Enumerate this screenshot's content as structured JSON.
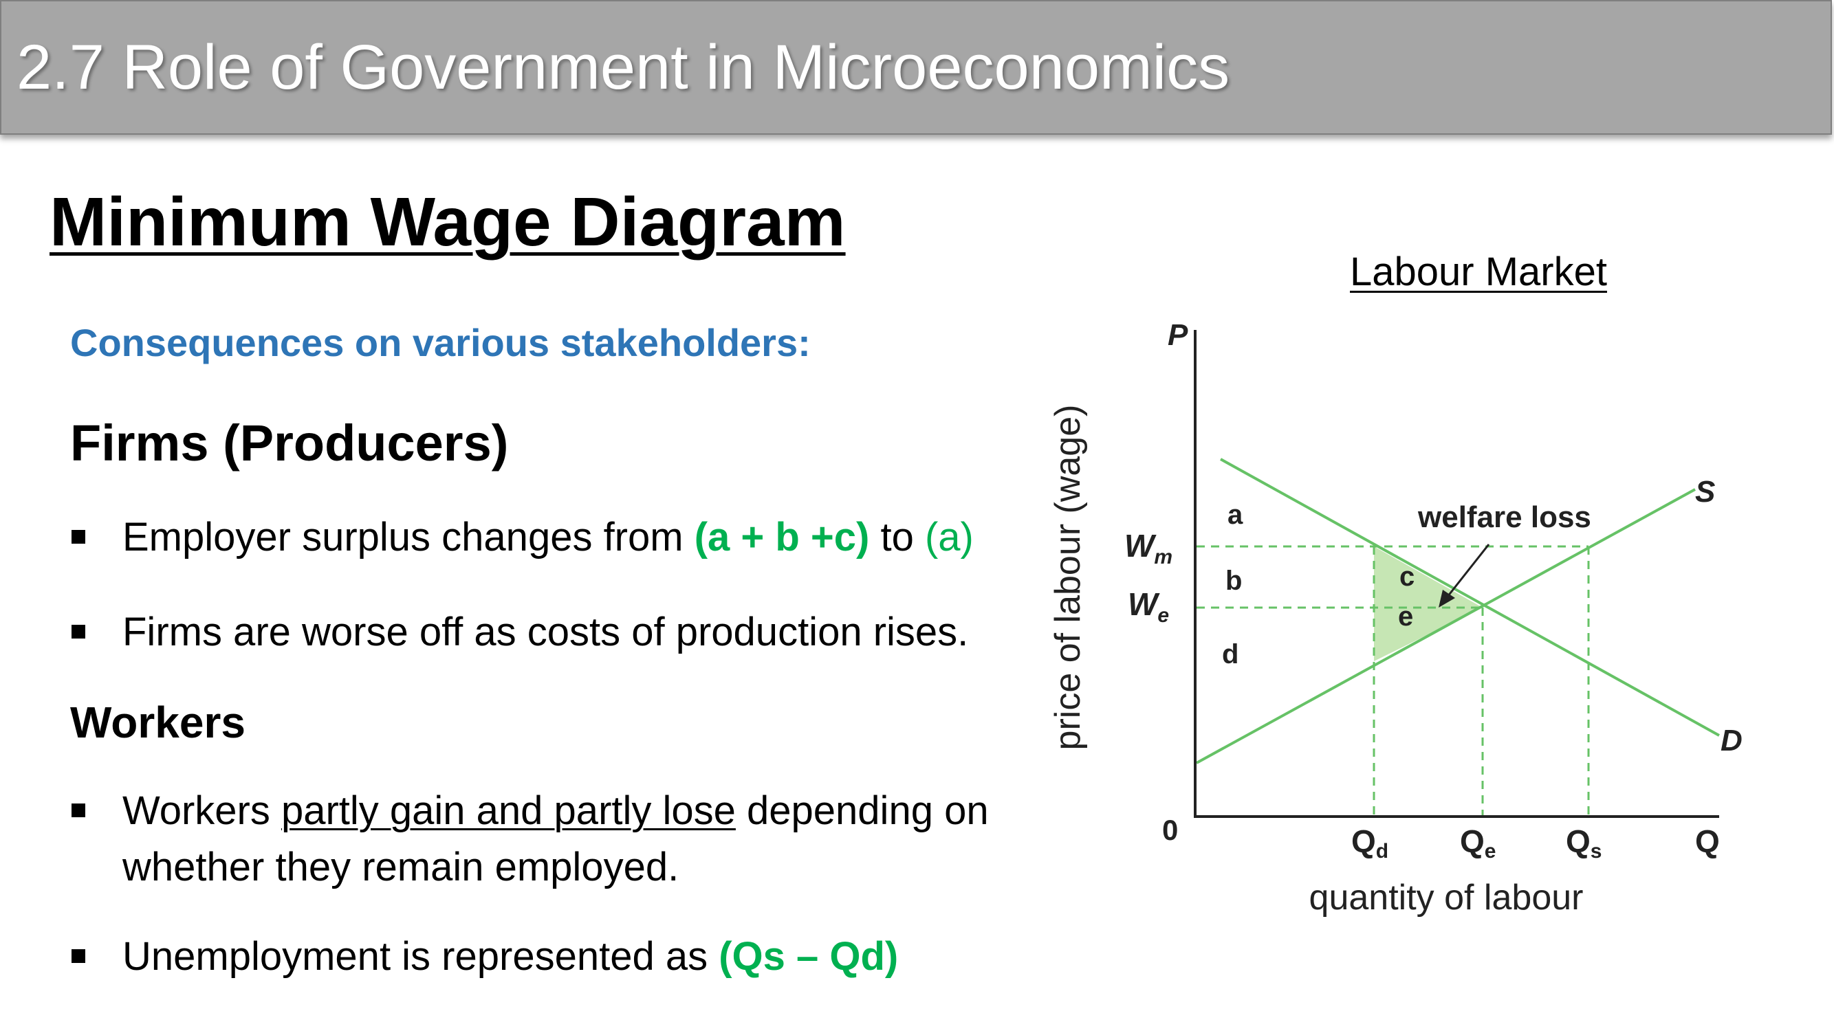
{
  "header": {
    "title": "2.7 Role of Government in Microeconomics"
  },
  "slide": {
    "title": "Minimum Wage Diagram",
    "subheading": "Consequences on various stakeholders:",
    "firms": {
      "title": "Firms (Producers)",
      "bullet1": {
        "text": "Employer surplus changes from ",
        "green1": "(a + b +c)",
        "mid": " to ",
        "green2": "(a)"
      },
      "bullet2": {
        "text": "Firms are worse off as costs of production rises."
      }
    },
    "workers": {
      "title": "Workers",
      "bullet1": {
        "pre": "Workers ",
        "underlined": "partly gain and partly lose",
        "post": " depending on",
        "line2": "whether they remain employed."
      },
      "bullet2": {
        "text": "Unemployment is represented as ",
        "green": "(Qs – Qd)"
      }
    }
  },
  "diagram": {
    "title": "Labour Market",
    "y_axis_letter": "P",
    "x_axis_letter": "Q",
    "origin": "0",
    "y_axis_label": "price of labour (wage)",
    "x_axis_label": "quantity of labour",
    "wm": {
      "main": "W",
      "sub": "m"
    },
    "we": {
      "main": "W",
      "sub": "e"
    },
    "qd": {
      "main": "Q",
      "sub": "d"
    },
    "qe": {
      "main": "Q",
      "sub": "e"
    },
    "qs": {
      "main": "Q",
      "sub": "s"
    },
    "supply_label": "S",
    "demand_label": "D",
    "region_a": "a",
    "region_b": "b",
    "region_c": "c",
    "region_e": "e",
    "region_d": "d",
    "welfare_loss_label": "welfare loss",
    "colors": {
      "curve": "#66c266",
      "dashed": "#66c266",
      "shade": "#c6e6b4",
      "axis": "#222222"
    }
  }
}
